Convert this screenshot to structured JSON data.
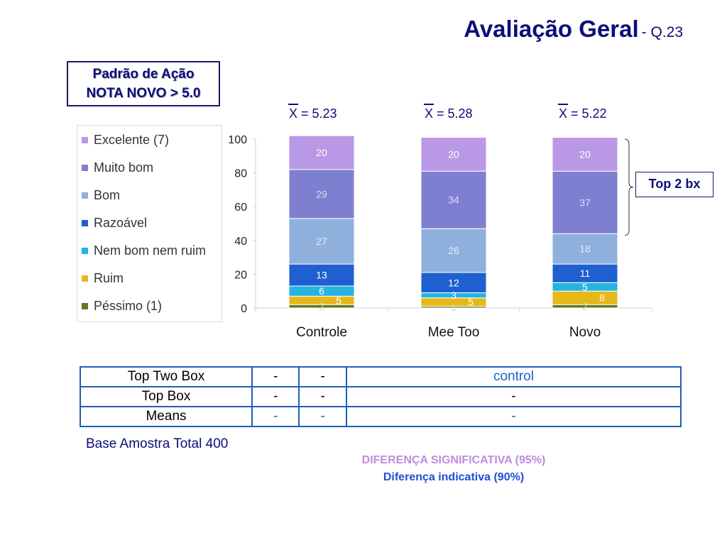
{
  "title": {
    "main": "Avaliação Geral",
    "sub": "- Q.23"
  },
  "padrao": {
    "line1": "Padrão de Ação",
    "line2": "NOTA NOVO > 5.0"
  },
  "means": [
    {
      "symbol": "X",
      "text": " = 5.23"
    },
    {
      "symbol": "X",
      "text": " = 5.28"
    },
    {
      "symbol": "X",
      "text": " = 5.22"
    }
  ],
  "top2_label": "Top 2 bx",
  "colors": {
    "Excelente (7)": "#b999e6",
    "Muito bom": "#7f7fd1",
    "Bom": "#8fb0dc",
    "Razoável": "#1f5fd0",
    "Nem bom nem ruim": "#25b3df",
    "Ruim": "#e6b81a",
    "Péssimo (1)": "#5f7a24"
  },
  "chart_data": {
    "type": "bar",
    "stacked": true,
    "categories": [
      "Controle",
      "Mee Too",
      "Novo"
    ],
    "series": [
      {
        "name": "Péssimo (1)",
        "values": [
          2,
          1,
          2
        ]
      },
      {
        "name": "Ruim",
        "values": [
          5,
          5,
          8
        ]
      },
      {
        "name": "Nem bom nem ruim",
        "values": [
          6,
          3,
          5
        ]
      },
      {
        "name": "Razoável",
        "values": [
          13,
          12,
          11
        ]
      },
      {
        "name": "Bom",
        "values": [
          27,
          26,
          18
        ]
      },
      {
        "name": "Muito bom",
        "values": [
          29,
          34,
          37
        ]
      },
      {
        "name": "Excelente (7)",
        "values": [
          20,
          20,
          20
        ]
      }
    ],
    "legend_order": [
      "Excelente (7)",
      "Muito bom",
      "Bom",
      "Razoável",
      "Nem bom nem ruim",
      "Ruim",
      "Péssimo (1)"
    ],
    "yticks": [
      0,
      20,
      40,
      60,
      80,
      100
    ],
    "ylim": [
      0,
      100
    ],
    "legend_position": "left",
    "grid": false
  },
  "table": {
    "rows": [
      {
        "label": "Top Two Box",
        "cells": [
          "-",
          "-",
          "control"
        ]
      },
      {
        "label": "Top Box",
        "cells": [
          "-",
          "-",
          "-"
        ]
      },
      {
        "label": "Means",
        "cells": [
          "-",
          "-",
          "-"
        ]
      }
    ]
  },
  "base_text": "Base Amostra Total 400",
  "sig95": "DIFERENÇA SIGNIFICATIVA (95%)",
  "sig90": "Diferença indicativa (90%)"
}
